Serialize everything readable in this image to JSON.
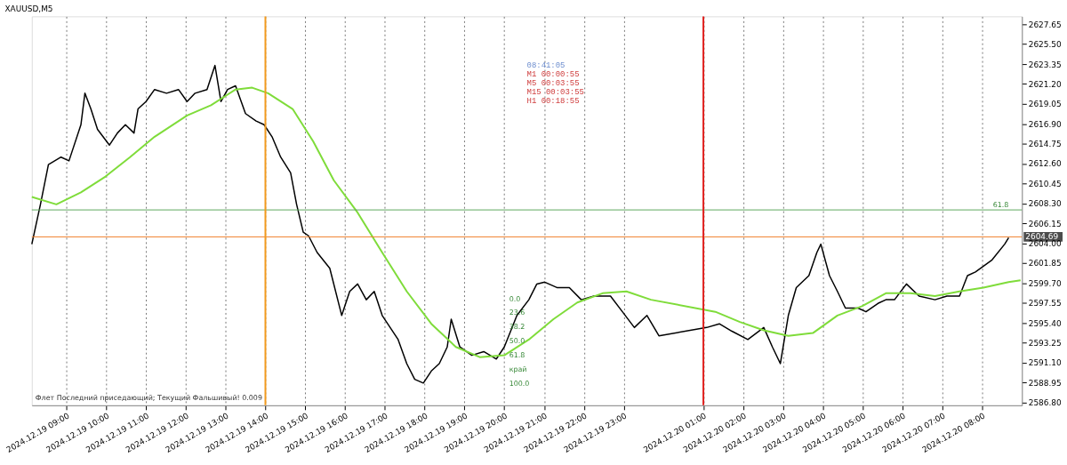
{
  "chart_data": {
    "type": "line",
    "title": "XAUUSD,M5",
    "xlim": [
      "2024-12-19T08:08",
      "2024-12-20T09:00"
    ],
    "ylim": [
      2586.5,
      2628.5
    ],
    "xticks": [
      {
        "value": "2024-12-19T09:00",
        "label": "2024.12.19 09:00"
      },
      {
        "value": "2024-12-19T10:00",
        "label": "2024.12.19 10:00"
      },
      {
        "value": "2024-12-19T11:00",
        "label": "2024.12.19 11:00"
      },
      {
        "value": "2024-12-19T12:00",
        "label": "2024.12.19 12:00"
      },
      {
        "value": "2024-12-19T13:00",
        "label": "2024.12.19 13:00"
      },
      {
        "value": "2024-12-19T14:00",
        "label": "2024.12.19 14:00"
      },
      {
        "value": "2024-12-19T15:00",
        "label": "2024.12.19 15:00"
      },
      {
        "value": "2024-12-19T16:00",
        "label": "2024.12.19 16:00"
      },
      {
        "value": "2024-12-19T17:00",
        "label": "2024.12.19 17:00"
      },
      {
        "value": "2024-12-19T18:00",
        "label": "2024.12.19 18:00"
      },
      {
        "value": "2024-12-19T19:00",
        "label": "2024.12.19 19:00"
      },
      {
        "value": "2024-12-19T20:00",
        "label": "2024.12.19 20:00"
      },
      {
        "value": "2024-12-19T21:00",
        "label": "2024.12.19 21:00"
      },
      {
        "value": "2024-12-19T22:00",
        "label": "2024.12.19 22:00"
      },
      {
        "value": "2024-12-19T23:00",
        "label": "2024.12.19 23:00"
      },
      {
        "value": "2024-12-20T01:00",
        "label": "2024.12.20 01:00"
      },
      {
        "value": "2024-12-20T02:00",
        "label": "2024.12.20 02:00"
      },
      {
        "value": "2024-12-20T03:00",
        "label": "2024.12.20 03:00"
      },
      {
        "value": "2024-12-20T04:00",
        "label": "2024.12.20 04:00"
      },
      {
        "value": "2024-12-20T05:00",
        "label": "2024.12.20 05:00"
      },
      {
        "value": "2024-12-20T06:00",
        "label": "2024.12.20 06:00"
      },
      {
        "value": "2024-12-20T07:00",
        "label": "2024.12.20 07:00"
      },
      {
        "value": "2024-12-20T08:00",
        "label": "2024.12.20 08:00"
      }
    ],
    "yticks": [
      2627.65,
      {
        "value": 2625.5,
        "label": "2625.50"
      },
      2623.35,
      {
        "value": 2621.2,
        "label": "2621.20"
      },
      2619.05,
      {
        "value": 2616.9,
        "label": "2616.90"
      },
      2614.75,
      {
        "value": 2612.6,
        "label": "2612.60"
      },
      2610.45,
      {
        "value": 2608.3,
        "label": "2608.30"
      },
      2606.15,
      {
        "value": 2604.0,
        "label": "2604.00"
      },
      2601.85,
      {
        "value": 2599.7,
        "label": "2599.70"
      },
      2597.55,
      {
        "value": 2595.4,
        "label": "2595.40"
      },
      2593.25,
      {
        "value": 2591.1,
        "label": "2591.10"
      },
      2588.95,
      {
        "value": 2586.8,
        "label": "2586.80"
      }
    ],
    "grid": "x",
    "marker": "none",
    "line_style": "solid",
    "series": [
      {
        "color": "#000000",
        "x": [
          "2024-12-19T08:08",
          "2024-12-19T08:21",
          "2024-12-19T08:33",
          "2024-12-19T08:52",
          "2024-12-19T09:04",
          "2024-12-19T09:22",
          "2024-12-19T09:28",
          "2024-12-19T09:37",
          "2024-12-19T09:47",
          "2024-12-19T10:05",
          "2024-12-19T10:17",
          "2024-12-19T10:29",
          "2024-12-19T10:42",
          "2024-12-19T10:48",
          "2024-12-19T11:00",
          "2024-12-19T11:13",
          "2024-12-19T11:31",
          "2024-12-19T11:49",
          "2024-12-19T12:02",
          "2024-12-19T12:14",
          "2024-12-19T12:32",
          "2024-12-19T12:44",
          "2024-12-19T12:53",
          "2024-12-19T13:03",
          "2024-12-19T13:15",
          "2024-12-19T13:30",
          "2024-12-19T13:46",
          "2024-12-19T13:58",
          "2024-12-19T14:10",
          "2024-12-19T14:23",
          "2024-12-19T14:38",
          "2024-12-19T14:47",
          "2024-12-19T14:57",
          "2024-12-19T15:05",
          "2024-12-19T15:18",
          "2024-12-19T15:37",
          "2024-12-19T15:55",
          "2024-12-19T16:07",
          "2024-12-19T16:19",
          "2024-12-19T16:32",
          "2024-12-19T16:44",
          "2024-12-19T16:56",
          "2024-12-19T17:08",
          "2024-12-19T17:20",
          "2024-12-19T17:33",
          "2024-12-19T17:45",
          "2024-12-19T17:58",
          "2024-12-19T18:10",
          "2024-12-19T18:22",
          "2024-12-19T18:34",
          "2024-12-19T18:40",
          "2024-12-19T18:53",
          "2024-12-19T19:11",
          "2024-12-19T19:29",
          "2024-12-19T19:48",
          "2024-12-19T20:00",
          "2024-12-19T20:19",
          "2024-12-19T20:37",
          "2024-12-19T20:49",
          "2024-12-19T21:01",
          "2024-12-19T21:20",
          "2024-12-19T21:38",
          "2024-12-19T21:56",
          "2024-12-19T22:15",
          "2024-12-19T22:40",
          "2024-12-19T22:58",
          "2024-12-19T23:16",
          "2024-12-19T23:35",
          "2024-12-19T23:53",
          "2024-12-20T01:05",
          "2024-12-20T01:24",
          "2024-12-20T01:43",
          "2024-12-20T02:07",
          "2024-12-20T02:31",
          "2024-12-20T02:44",
          "2024-12-20T02:56",
          "2024-12-20T03:08",
          "2024-12-20T03:20",
          "2024-12-20T03:39",
          "2024-12-20T03:51",
          "2024-12-20T03:57",
          "2024-12-20T04:10",
          "2024-12-20T04:22",
          "2024-12-20T04:34",
          "2024-12-20T04:53",
          "2024-12-20T05:05",
          "2024-12-20T05:23",
          "2024-12-20T05:35",
          "2024-12-20T05:48",
          "2024-12-20T06:06",
          "2024-12-20T06:25",
          "2024-12-20T06:49",
          "2024-12-20T07:07",
          "2024-12-20T07:26",
          "2024-12-20T07:38",
          "2024-12-20T07:50",
          "2024-12-20T08:15",
          "2024-12-20T08:34",
          "2024-12-20T08:40"
        ],
        "values": [
          2603.9,
          2608.2,
          2612.5,
          2613.3,
          2612.9,
          2616.8,
          2620.2,
          2618.5,
          2616.3,
          2614.6,
          2615.9,
          2616.8,
          2615.9,
          2618.5,
          2619.3,
          2620.6,
          2620.2,
          2620.6,
          2619.3,
          2620.2,
          2620.6,
          2623.2,
          2619.3,
          2620.6,
          2621.0,
          2618.0,
          2617.2,
          2616.8,
          2615.5,
          2613.3,
          2611.6,
          2608.2,
          2605.2,
          2604.8,
          2603.0,
          2601.3,
          2596.2,
          2598.8,
          2599.6,
          2597.9,
          2598.8,
          2596.2,
          2594.9,
          2593.6,
          2591.0,
          2589.3,
          2588.9,
          2590.2,
          2591.0,
          2592.8,
          2595.8,
          2592.8,
          2591.9,
          2592.3,
          2591.5,
          2592.8,
          2596.2,
          2597.9,
          2599.6,
          2599.8,
          2599.2,
          2599.2,
          2597.9,
          2598.3,
          2598.3,
          2596.6,
          2594.9,
          2596.2,
          2594.0,
          2594.9,
          2595.3,
          2594.5,
          2593.6,
          2594.9,
          2592.8,
          2591.0,
          2596.2,
          2599.2,
          2600.5,
          2603.0,
          2603.9,
          2600.5,
          2598.8,
          2597.0,
          2597.0,
          2596.6,
          2597.5,
          2597.9,
          2597.9,
          2599.6,
          2598.3,
          2597.9,
          2598.3,
          2598.3,
          2600.5,
          2600.9,
          2602.2,
          2603.9,
          2604.6
        ]
      },
      {
        "color": "#7fdc3a",
        "x": [
          "2024-12-19T08:08",
          "2024-12-19T08:45",
          "2024-12-19T09:22",
          "2024-12-19T09:59",
          "2024-12-19T10:36",
          "2024-12-19T11:13",
          "2024-12-19T12:02",
          "2024-12-19T12:38",
          "2024-12-19T13:15",
          "2024-12-19T13:40",
          "2024-12-19T14:04",
          "2024-12-19T14:41",
          "2024-12-19T15:12",
          "2024-12-19T15:43",
          "2024-12-19T16:19",
          "2024-12-19T16:56",
          "2024-12-19T17:33",
          "2024-12-19T18:10",
          "2024-12-19T18:47",
          "2024-12-19T19:23",
          "2024-12-19T20:00",
          "2024-12-19T20:37",
          "2024-12-19T21:14",
          "2024-12-19T21:50",
          "2024-12-19T22:28",
          "2024-12-19T23:04",
          "2024-12-19T23:41",
          "2024-12-20T01:18",
          "2024-12-20T01:55",
          "2024-12-20T02:31",
          "2024-12-20T03:08",
          "2024-12-20T03:45",
          "2024-12-20T04:22",
          "2024-12-20T04:59",
          "2024-12-20T05:35",
          "2024-12-20T06:12",
          "2024-12-20T06:49",
          "2024-12-20T07:26",
          "2024-12-20T08:02",
          "2024-12-20T08:40",
          "2024-12-20T08:58"
        ],
        "values": [
          2609.0,
          2608.2,
          2609.5,
          2611.2,
          2613.3,
          2615.5,
          2617.8,
          2618.9,
          2620.6,
          2620.8,
          2620.2,
          2618.5,
          2615.0,
          2610.8,
          2607.3,
          2603.0,
          2598.8,
          2595.3,
          2592.8,
          2591.7,
          2591.9,
          2593.6,
          2595.8,
          2597.6,
          2598.6,
          2598.8,
          2597.9,
          2596.6,
          2595.5,
          2594.6,
          2594.0,
          2594.3,
          2596.2,
          2597.2,
          2598.6,
          2598.6,
          2598.3,
          2598.8,
          2599.2,
          2599.8,
          2600.0
        ]
      }
    ],
    "ref_lines": [
      {
        "axis": "y",
        "value": 2604.69,
        "label": "2604.69",
        "color": "#f07f2a"
      },
      {
        "axis": "y",
        "value": 2607.6,
        "color": "#5fa85f"
      },
      {
        "axis": "x",
        "value": "2024-12-19T14:00",
        "color": "#f29a1d"
      },
      {
        "axis": "x",
        "value": "2024-12-20T01:00",
        "color": "#e0211f"
      }
    ],
    "annotations": [
      "08:41:05",
      "M1 00:00:55",
      "M5 00:03:55",
      "M15 00:03:55",
      "H1 00:18:55",
      "Флет Последний приседающий; Текущий Фальшивый! 0.009",
      "0.0",
      "23.6",
      "38.2",
      "50.0",
      "61.8",
      "край",
      "100.0",
      {
        "text": "61.8",
        "x": "2024-12-20T08:40",
        "y": 2607.6
      }
    ]
  }
}
